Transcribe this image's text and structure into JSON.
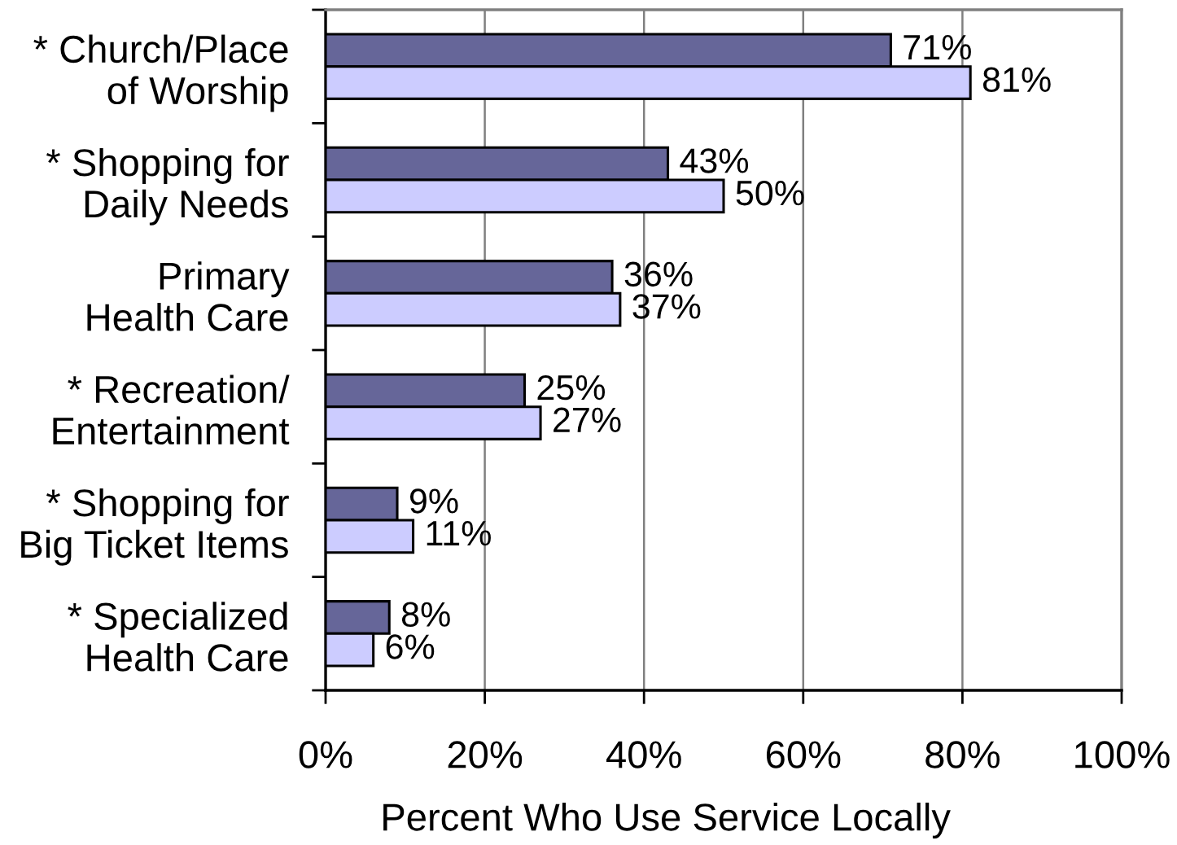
{
  "chart_data": {
    "type": "bar",
    "orientation": "horizontal",
    "xlabel": "Percent Who Use Service Locally",
    "categories": [
      "* Church/Place\nof Worship",
      "* Shopping for\nDaily Needs",
      "Primary\nHealth Care",
      "* Recreation/\nEntertainment",
      "* Shopping for\nBig Ticket Items",
      "* Specialized\nHealth Care"
    ],
    "series": [
      {
        "color": "#666699",
        "values": [
          71,
          43,
          36,
          25,
          9,
          8
        ],
        "value_labels": [
          "71%",
          "43%",
          "36%",
          "25%",
          "9%",
          "8%"
        ]
      },
      {
        "color": "#ccccff",
        "values": [
          81,
          50,
          37,
          27,
          11,
          6
        ],
        "value_labels": [
          "81%",
          "50%",
          "37%",
          "27%",
          "11%",
          "6%"
        ]
      }
    ],
    "xlim": [
      0,
      100
    ],
    "xticks": [
      {
        "value": 0,
        "label": "0%"
      },
      {
        "value": 20,
        "label": "20%"
      },
      {
        "value": 40,
        "label": "40%"
      },
      {
        "value": 60,
        "label": "60%"
      },
      {
        "value": 80,
        "label": "80%"
      },
      {
        "value": 100,
        "label": "100%"
      }
    ],
    "grid": "x"
  }
}
